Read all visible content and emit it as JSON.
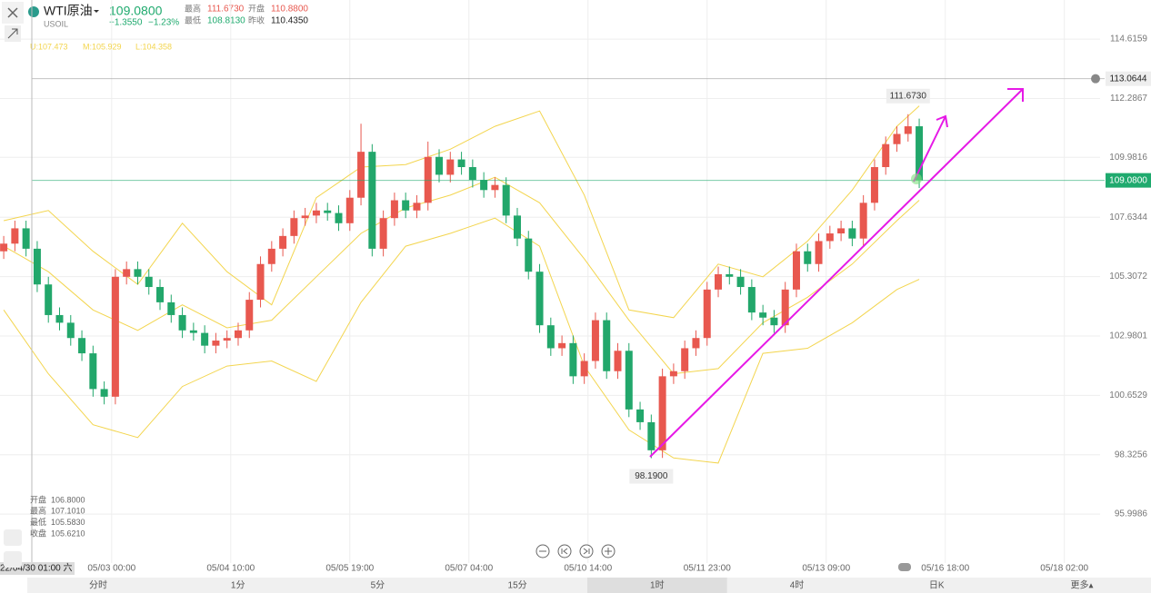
{
  "header": {
    "symbol": "WTI原油",
    "code": "USOIL",
    "price": "109.0800",
    "change": "−1.3550",
    "change_pct": "−1.23%",
    "stats": [
      {
        "name": "最高",
        "value": "111.6730"
      },
      {
        "name": "开盘",
        "value": "110.8800"
      },
      {
        "name": "最低",
        "value": "108.8130"
      },
      {
        "name": "昨收",
        "value": "110.4350"
      }
    ]
  },
  "chart_data": {
    "type": "candlestick",
    "up_color": "#e8584f",
    "down_color": "#22a76b",
    "grid": true,
    "ylim": [
      94.08,
      116.15
    ],
    "yticks": [
      114.6159,
      112.2867,
      109.9816,
      107.6344,
      105.3072,
      102.9801,
      100.6529,
      98.3256,
      95.9986
    ],
    "xlim": [
      -10,
      285.6
    ],
    "xticks": [
      {
        "value": 20,
        "label": "05/03 00:00"
      },
      {
        "value": 52,
        "label": "05/04 10:00"
      },
      {
        "value": 84,
        "label": "05/05 19:00"
      },
      {
        "value": 116,
        "label": "05/07 04:00"
      },
      {
        "value": 148,
        "label": "05/10 14:00"
      },
      {
        "value": 180,
        "label": "05/11 23:00"
      },
      {
        "value": 212,
        "label": "05/13 09:00"
      },
      {
        "value": 244,
        "label": "05/16 18:00"
      },
      {
        "value": 276,
        "label": "05/18 02:00"
      }
    ],
    "x": [
      -9,
      -6,
      -3,
      0,
      3,
      6,
      9,
      12,
      15,
      18,
      21,
      24,
      27,
      30,
      33,
      36,
      39,
      42,
      45,
      48,
      51,
      54,
      57,
      60,
      63,
      66,
      69,
      72,
      75,
      78,
      81,
      84,
      87,
      90,
      93,
      96,
      99,
      102,
      105,
      108,
      111,
      114,
      117,
      120,
      123,
      126,
      129,
      132,
      135,
      138,
      141,
      144,
      147,
      150,
      153,
      156,
      159,
      162,
      165,
      168,
      171,
      174,
      177,
      180,
      183,
      186,
      189,
      192,
      195,
      198,
      201,
      204,
      207,
      210,
      213,
      216,
      219,
      222,
      225,
      228,
      231,
      234,
      237
    ],
    "open": [
      106.3,
      106.6,
      107.2,
      106.4,
      105.0,
      103.8,
      103.5,
      102.9,
      102.3,
      100.9,
      100.6,
      105.3,
      105.6,
      105.3,
      104.9,
      104.3,
      103.8,
      103.2,
      103.1,
      102.6,
      102.8,
      102.9,
      103.2,
      104.4,
      105.8,
      106.4,
      106.9,
      107.6,
      107.7,
      107.9,
      107.8,
      107.4,
      108.4,
      110.2,
      106.4,
      107.6,
      108.3,
      107.9,
      108.2,
      110.0,
      109.3,
      109.9,
      109.6,
      109.1,
      108.7,
      108.9,
      107.7,
      106.8,
      105.5,
      103.4,
      102.5,
      102.7,
      101.4,
      102.0,
      103.6,
      101.6,
      102.4,
      100.1,
      99.6,
      98.5,
      101.4,
      101.6,
      102.5,
      102.9,
      104.8,
      105.4,
      105.3,
      104.9,
      103.9,
      103.7,
      103.4,
      104.8,
      106.3,
      105.8,
      106.7,
      107.0,
      107.2,
      106.8,
      108.2,
      109.6,
      110.5,
      110.9,
      111.2
    ],
    "high": [
      106.9,
      107.5,
      107.5,
      106.7,
      105.3,
      104.1,
      103.8,
      103.2,
      102.6,
      101.2,
      105.6,
      105.9,
      105.9,
      105.6,
      105.2,
      104.6,
      104.1,
      103.5,
      103.4,
      103.1,
      103.2,
      103.5,
      104.7,
      106.1,
      106.7,
      107.2,
      107.9,
      108.0,
      108.2,
      108.2,
      108.1,
      108.7,
      111.3,
      110.5,
      107.9,
      108.6,
      108.6,
      108.5,
      110.6,
      110.3,
      110.2,
      110.2,
      109.9,
      109.4,
      109.2,
      109.2,
      108.0,
      107.1,
      105.8,
      103.7,
      103.0,
      103.0,
      102.3,
      103.9,
      103.9,
      102.7,
      102.7,
      100.4,
      99.9,
      101.7,
      101.9,
      102.8,
      103.2,
      105.1,
      105.7,
      105.7,
      105.6,
      105.2,
      104.2,
      104.0,
      105.1,
      106.6,
      106.6,
      107.0,
      107.3,
      107.5,
      107.5,
      108.5,
      109.9,
      110.8,
      111.2,
      111.673,
      111.5
    ],
    "low": [
      106.0,
      106.3,
      106.1,
      104.7,
      103.5,
      103.2,
      102.6,
      102.0,
      100.6,
      100.3,
      100.3,
      105.0,
      105.0,
      104.6,
      104.0,
      103.5,
      102.9,
      102.8,
      102.3,
      102.3,
      102.5,
      102.6,
      102.9,
      104.1,
      105.5,
      106.1,
      106.6,
      107.3,
      107.4,
      107.5,
      107.1,
      107.1,
      108.1,
      106.1,
      106.1,
      107.3,
      107.6,
      107.6,
      107.9,
      109.0,
      109.0,
      109.3,
      108.8,
      108.4,
      108.4,
      107.4,
      106.5,
      105.2,
      103.1,
      102.2,
      102.2,
      101.1,
      101.1,
      101.7,
      101.3,
      101.3,
      99.8,
      99.3,
      98.19,
      98.2,
      101.1,
      101.3,
      102.2,
      102.6,
      104.5,
      105.0,
      104.6,
      103.6,
      103.4,
      103.1,
      103.1,
      104.5,
      105.5,
      105.5,
      106.4,
      106.7,
      106.5,
      106.5,
      107.9,
      109.3,
      110.2,
      110.6,
      108.78
    ],
    "close": [
      106.6,
      107.2,
      106.4,
      105.0,
      103.8,
      103.5,
      102.9,
      102.3,
      100.9,
      100.6,
      105.3,
      105.6,
      105.3,
      104.9,
      104.3,
      103.8,
      103.2,
      103.1,
      102.6,
      102.8,
      102.9,
      103.2,
      104.4,
      105.8,
      106.4,
      106.9,
      107.6,
      107.7,
      107.9,
      107.8,
      107.4,
      108.4,
      110.2,
      106.4,
      107.6,
      108.3,
      107.9,
      108.2,
      110.0,
      109.3,
      109.9,
      109.6,
      109.1,
      108.7,
      108.9,
      107.7,
      106.8,
      105.5,
      103.4,
      102.5,
      102.7,
      101.4,
      102.0,
      103.6,
      101.6,
      102.4,
      100.1,
      99.6,
      98.5,
      101.4,
      101.6,
      102.5,
      102.9,
      104.8,
      105.4,
      105.3,
      104.9,
      103.9,
      103.7,
      103.4,
      104.8,
      106.3,
      105.8,
      106.7,
      107.0,
      107.2,
      106.8,
      108.2,
      109.6,
      110.5,
      110.9,
      111.2,
      109.08
    ],
    "band_x": [
      -9,
      3,
      15,
      27,
      39,
      51,
      63,
      75,
      87,
      99,
      111,
      123,
      135,
      147,
      159,
      171,
      183,
      195,
      207,
      219,
      231,
      237
    ],
    "bands": [
      {
        "color": "#f3d54e",
        "values": [
          107.5,
          107.9,
          106.3,
          105.0,
          107.4,
          105.5,
          104.2,
          108.4,
          109.6,
          109.7,
          110.3,
          111.2,
          111.8,
          108.5,
          104.0,
          103.7,
          105.8,
          105.3,
          106.7,
          108.7,
          111.2,
          112.0
        ]
      },
      {
        "color": "#f3d54e",
        "values": [
          106.5,
          105.5,
          104.0,
          103.2,
          104.2,
          103.3,
          103.6,
          105.3,
          107.0,
          108.0,
          108.5,
          109.2,
          108.2,
          106.0,
          103.6,
          101.5,
          101.7,
          103.5,
          104.5,
          105.8,
          107.5,
          108.3
        ]
      },
      {
        "color": "#f3d54e",
        "values": [
          104.0,
          101.5,
          99.5,
          99.0,
          101.0,
          101.8,
          102.0,
          101.2,
          104.3,
          106.5,
          107.0,
          107.6,
          106.5,
          101.8,
          99.3,
          98.2,
          98.0,
          102.3,
          102.5,
          103.5,
          104.8,
          105.2
        ]
      }
    ],
    "indicator_labels": [
      "U:107.473",
      "M:105.929",
      "L:104.358"
    ],
    "price_lines": [
      {
        "value": 113.0644,
        "color": "#9a9a9a"
      },
      {
        "value": 109.08,
        "label": "109.0800",
        "color": "#1faa6e"
      }
    ],
    "annotations": [
      {
        "x": 234,
        "value": 111.673,
        "label": "111.6730",
        "position": "above"
      },
      {
        "x": 165,
        "value": 98.19,
        "label": "98.1900",
        "position": "below"
      }
    ],
    "crosshair": {
      "label": "22/04/30 01:00 六",
      "items": [
        {
          "name": "开盘",
          "value": "106.8000"
        },
        {
          "name": "最高",
          "value": "107.1010"
        },
        {
          "name": "最低",
          "value": "105.5830"
        },
        {
          "name": "收盘",
          "value": "105.6210"
        }
      ]
    }
  },
  "timeframes": {
    "items": [
      "分时",
      "1分",
      "5分",
      "15分",
      "1时",
      "4时",
      "日K",
      "更多▴"
    ],
    "selected": 4
  }
}
